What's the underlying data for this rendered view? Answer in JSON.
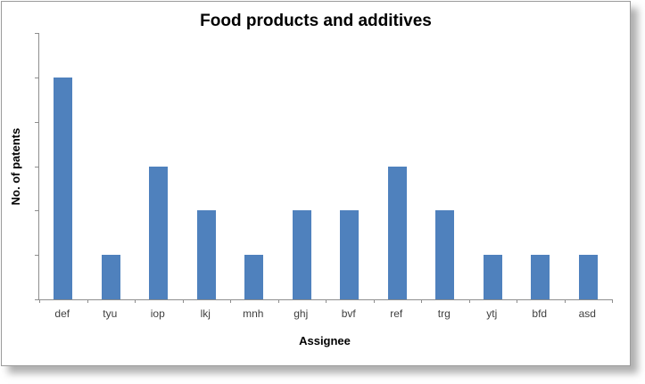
{
  "chart_data": {
    "type": "bar",
    "title": "Food products and additives",
    "xlabel": "Assignee",
    "ylabel": "No. of patents",
    "categories": [
      "def",
      "tyu",
      "iop",
      "lkj",
      "mnh",
      "ghj",
      "bvf",
      "ref",
      "trg",
      "ytj",
      "bfd",
      "asd"
    ],
    "values": [
      5,
      1,
      3,
      2,
      1,
      2,
      2,
      3,
      2,
      1,
      1,
      1
    ],
    "ylim": [
      0,
      6
    ],
    "y_tick_step": 1,
    "y_tick_labels_visible": false,
    "x_boundary_ticks": 13,
    "grid": false,
    "legend": false,
    "bar_color": "#4f81bd",
    "axis_color": "#8e8e8e",
    "label_color": "#3f3f3f"
  }
}
